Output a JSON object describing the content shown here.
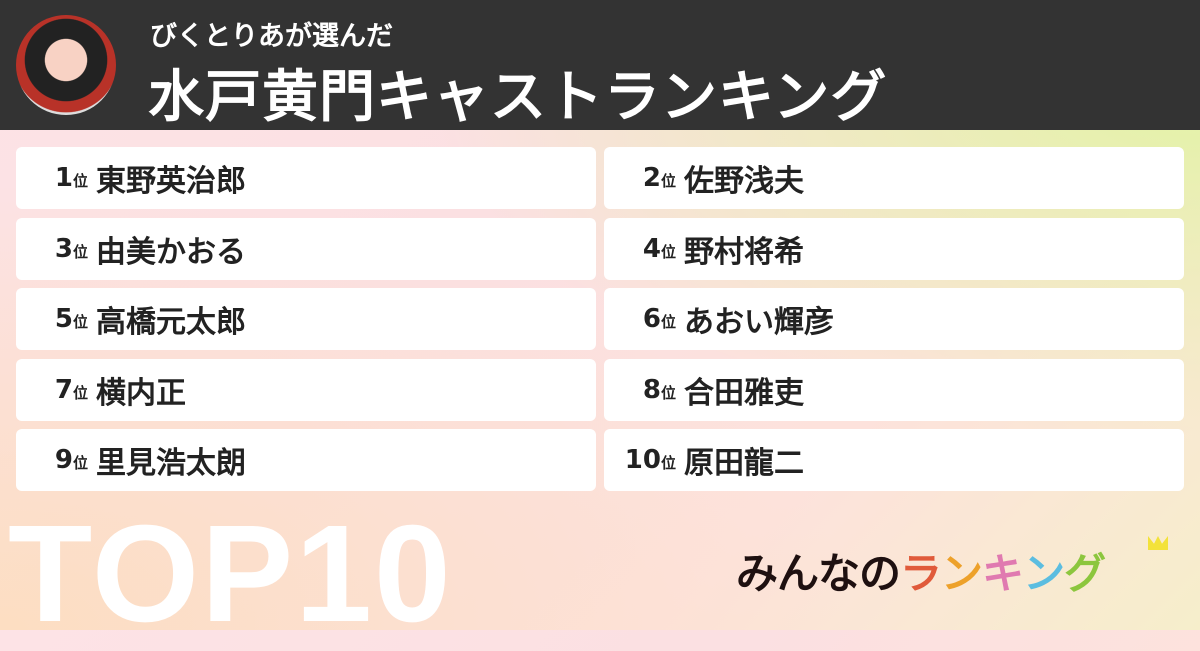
{
  "header": {
    "subtitle": "びくとりあが選んだ",
    "title": "水戸黄門キャストランキング"
  },
  "rank_suffix": "位",
  "rankings": [
    {
      "rank": "1",
      "name": "東野英治郎"
    },
    {
      "rank": "2",
      "name": "佐野浅夫"
    },
    {
      "rank": "3",
      "name": "由美かおる"
    },
    {
      "rank": "4",
      "name": "野村将希"
    },
    {
      "rank": "5",
      "name": "高橋元太郎"
    },
    {
      "rank": "6",
      "name": "あおい輝彦"
    },
    {
      "rank": "7",
      "name": "横内正"
    },
    {
      "rank": "8",
      "name": "合田雅吏"
    },
    {
      "rank": "9",
      "name": "里見浩太朗"
    },
    {
      "rank": "10",
      "name": "原田龍二"
    }
  ],
  "badge": "TOP10",
  "logo": {
    "text": "みんなのランキング",
    "chars": [
      "ラ",
      "ン",
      "キ",
      "ン",
      "グ"
    ],
    "prefix": "みんなの",
    "colors": [
      "#e05a3a",
      "#eda12a",
      "#e07ab0",
      "#5bbde0",
      "#8cc63e"
    ]
  }
}
